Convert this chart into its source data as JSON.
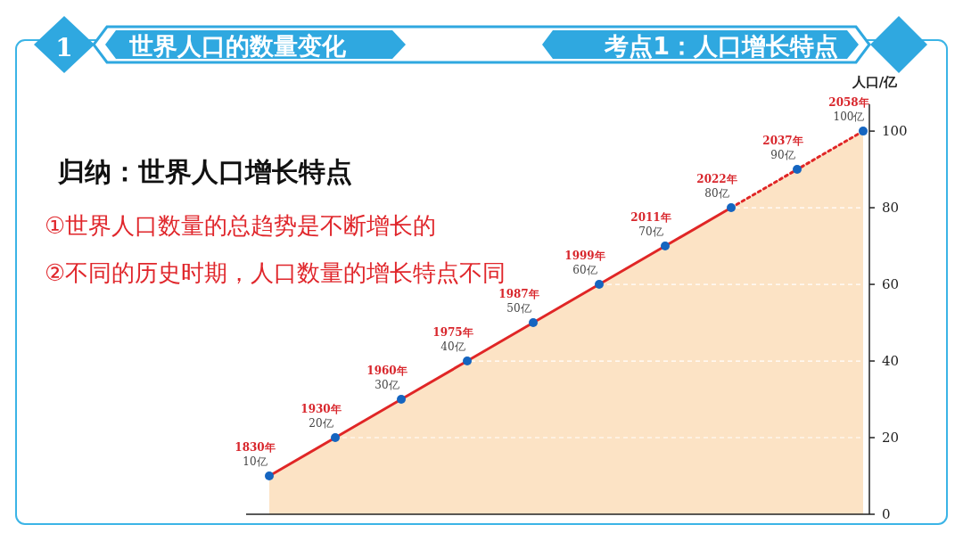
{
  "chart_data": {
    "type": "area",
    "title": "世界人口的数量变化",
    "subtitle": "考点1：人口增长特点",
    "ylabel": "人口/亿",
    "annotations": [
      "1",
      "归纳：世界人口增长特点",
      "①世界人口数量的总趋势是不断增长的",
      "②不同的历史时期，人口数量的增长特点不同"
    ],
    "categories": [
      null,
      null,
      null,
      null,
      null,
      null,
      null,
      null,
      null,
      null
    ],
    "ylim": [
      0,
      107
    ],
    "yticks": [
      0,
      20,
      40,
      60,
      80,
      100
    ],
    "grid": "y",
    "marker": "circle",
    "tick_labels": "y",
    "series": [
      {
        "color": "#e02626",
        "line_style": "solid",
        "values": [
          10,
          20,
          30,
          40,
          50,
          60,
          70,
          80,
          null,
          null
        ],
        "value_labels": [
          "1830年\n10亿",
          "1930年\n20亿",
          "1960年\n30亿",
          "1975年\n40亿",
          "1987年\n50亿",
          "1999年\n60亿",
          "2011年\n70亿",
          "2022年\n80亿",
          null,
          null
        ]
      },
      {
        "color": "#e02626",
        "line_style": "dotted",
        "values": [
          null,
          null,
          null,
          null,
          null,
          null,
          null,
          80,
          90,
          100
        ],
        "value_labels": [
          null,
          null,
          null,
          null,
          null,
          null,
          null,
          null,
          "2037年\n90亿",
          "2058年\n100亿"
        ]
      }
    ]
  }
}
